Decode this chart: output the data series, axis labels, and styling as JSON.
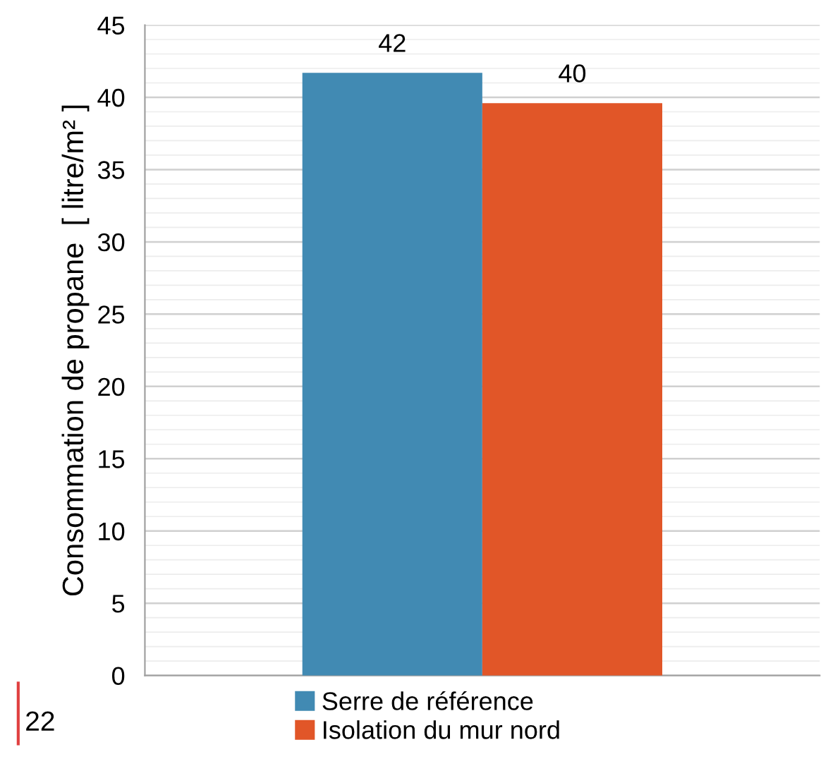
{
  "chart_data": {
    "type": "bar",
    "ylabel": "Consommation de propane  [ litre/m² ]",
    "categories": [
      null
    ],
    "series": [
      {
        "name": "Serre de référence",
        "color": "#418ab3",
        "values": [
          41.7
        ],
        "value_labels": [
          "42"
        ]
      },
      {
        "name": "Isolation du mur nord",
        "color": "#e15628",
        "values": [
          39.6
        ],
        "value_labels": [
          "40"
        ]
      }
    ],
    "ylim": [
      0,
      45
    ],
    "yticks": [
      0,
      5,
      10,
      15,
      20,
      25,
      30,
      35,
      40,
      45
    ],
    "grid": "y",
    "legend": "bottom",
    "annotations": [
      "22"
    ]
  }
}
